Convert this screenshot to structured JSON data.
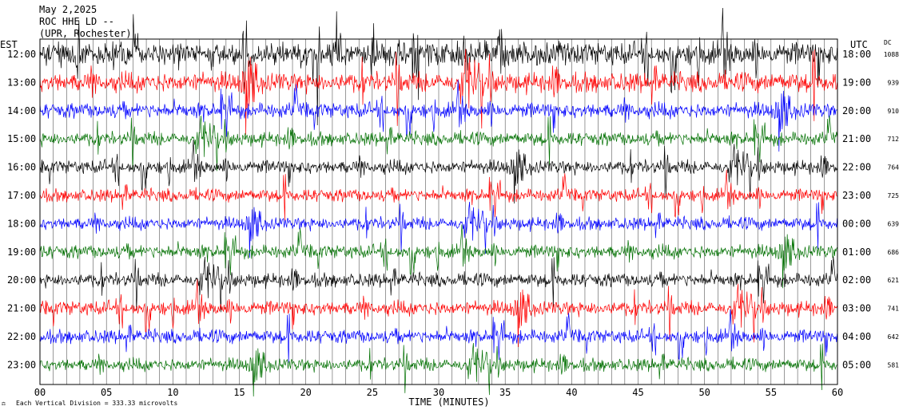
{
  "header": {
    "date": "May 2,2025",
    "station": "ROC HHE LD --",
    "location": "(UPR, Rochester)"
  },
  "footer": {
    "scale_note": "Each Vertical Division = 333.33 microvolts"
  },
  "chart_data": {
    "type": "line",
    "title": "",
    "xlabel": "TIME (MINUTES)",
    "left_axis_label": "EST",
    "right_axis_label": "UTC",
    "dc_header": "DC",
    "xlim": [
      0,
      60
    ],
    "x_ticks": [
      "00",
      "05",
      "10",
      "15",
      "20",
      "25",
      "30",
      "35",
      "40",
      "45",
      "50",
      "55",
      "60"
    ],
    "grid": "vertical lines every minute",
    "trace_colors": [
      "#000000",
      "#ff0000",
      "#0000ff",
      "#007000"
    ],
    "rows": [
      {
        "est": "12:00",
        "utc": "18:00",
        "dc": "1088",
        "color": "#000000",
        "activity": 1.35
      },
      {
        "est": "13:00",
        "utc": "19:00",
        "dc": "939",
        "color": "#ff0000",
        "activity": 1.15
      },
      {
        "est": "14:00",
        "utc": "20:00",
        "dc": "910",
        "color": "#0000ff",
        "activity": 0.9
      },
      {
        "est": "15:00",
        "utc": "21:00",
        "dc": "712",
        "color": "#007000",
        "activity": 0.8
      },
      {
        "est": "16:00",
        "utc": "22:00",
        "dc": "764",
        "color": "#000000",
        "activity": 0.8
      },
      {
        "est": "17:00",
        "utc": "23:00",
        "dc": "725",
        "color": "#ff0000",
        "activity": 0.75
      },
      {
        "est": "18:00",
        "utc": "00:00",
        "dc": "639",
        "color": "#0000ff",
        "activity": 0.75
      },
      {
        "est": "19:00",
        "utc": "01:00",
        "dc": "686",
        "color": "#007000",
        "activity": 0.8
      },
      {
        "est": "20:00",
        "utc": "02:00",
        "dc": "621",
        "color": "#000000",
        "activity": 0.8
      },
      {
        "est": "21:00",
        "utc": "03:00",
        "dc": "741",
        "color": "#ff0000",
        "activity": 0.85
      },
      {
        "est": "22:00",
        "utc": "04:00",
        "dc": "642",
        "color": "#0000ff",
        "activity": 0.8
      },
      {
        "est": "23:00",
        "utc": "05:00",
        "dc": "581",
        "color": "#007000",
        "activity": 0.75
      }
    ]
  }
}
